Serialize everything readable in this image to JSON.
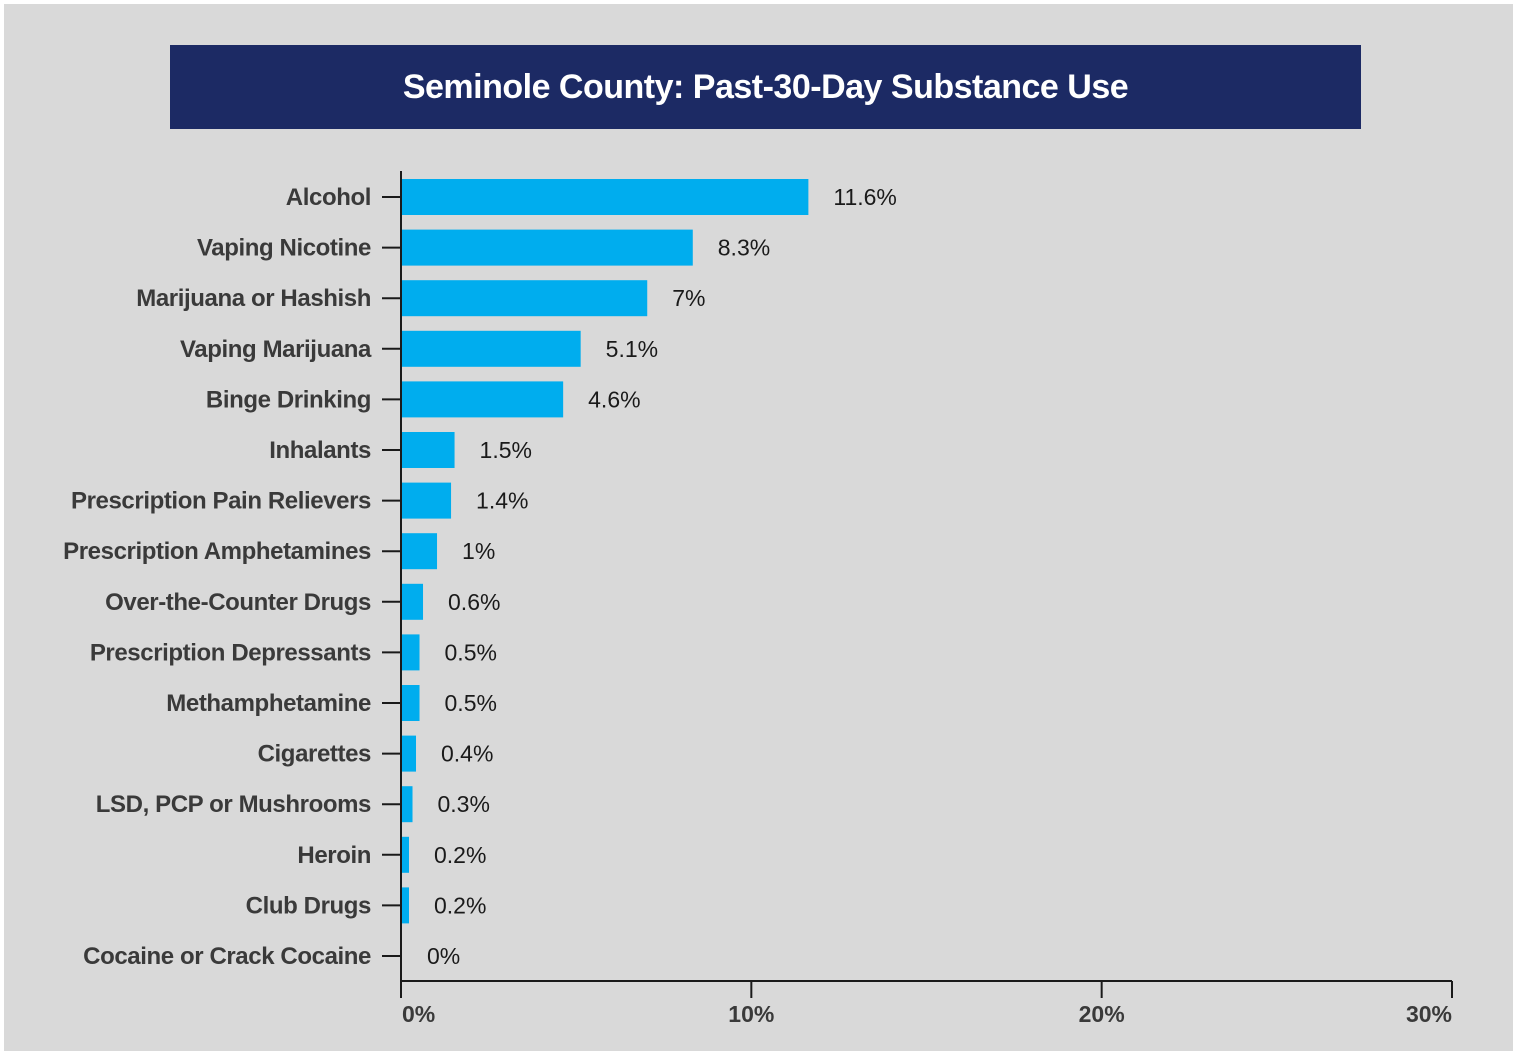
{
  "chart_data": {
    "type": "bar",
    "orientation": "horizontal",
    "title": "Seminole County: Past-30-Day Substance Use",
    "categories": [
      "Alcohol",
      "Vaping Nicotine",
      "Marijuana or Hashish",
      "Vaping Marijuana",
      "Binge Drinking",
      "Inhalants",
      "Prescription Pain Relievers",
      "Prescription Amphetamines",
      "Over-the-Counter Drugs",
      "Prescription Depressants",
      "Methamphetamine",
      "Cigarettes",
      "LSD, PCP or Mushrooms",
      "Heroin",
      "Club Drugs",
      "Cocaine or Crack Cocaine"
    ],
    "values": [
      11.6,
      8.3,
      7,
      5.1,
      4.6,
      1.5,
      1.4,
      1,
      0.6,
      0.5,
      0.5,
      0.4,
      0.3,
      0.2,
      0.2,
      0
    ],
    "value_labels": [
      "11.6%",
      "8.3%",
      "7%",
      "5.1%",
      "4.6%",
      "1.5%",
      "1.4%",
      "1%",
      "0.6%",
      "0.5%",
      "0.5%",
      "0.4%",
      "0.3%",
      "0.2%",
      "0.2%",
      "0%"
    ],
    "xlim": [
      0,
      30
    ],
    "xticks": [
      0,
      10,
      20,
      30
    ],
    "xtick_labels": [
      "0%",
      "10%",
      "20%",
      "30%"
    ],
    "xlabel": "",
    "ylabel": "",
    "grid": false,
    "legend": "none",
    "colors": {
      "bar": "#00adee",
      "banner": "#1c2a64",
      "background": "#d9d9d9",
      "axis": "#1a1a1a"
    }
  }
}
